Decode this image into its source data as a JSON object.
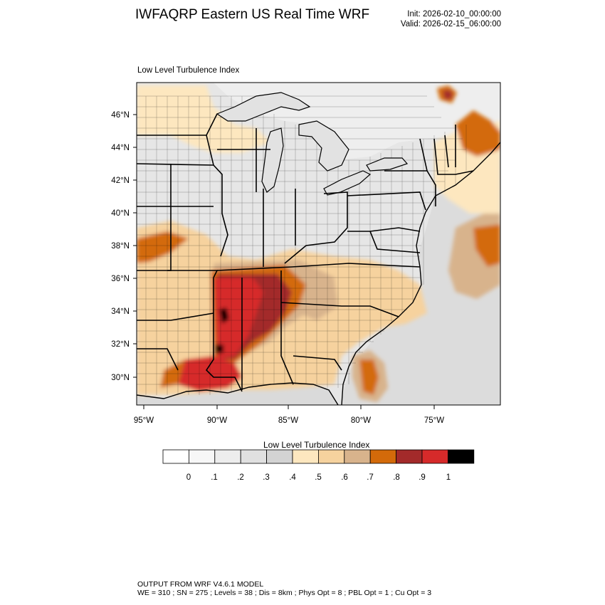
{
  "header": {
    "title": "IWFAQRP Eastern US Real Time WRF",
    "init": "Init: 2026-02-10_00:00:00",
    "valid": "Valid: 2026-02-15_06:00:00"
  },
  "map": {
    "subtitle": "Low Level Turbulence Index",
    "lat_ticks": [
      "46°N",
      "44°N",
      "42°N",
      "40°N",
      "38°N",
      "36°N",
      "34°N",
      "32°N",
      "30°N"
    ],
    "lon_ticks": [
      "95°W",
      "90°W",
      "85°W",
      "80°W",
      "75°W"
    ]
  },
  "colorbar": {
    "title": "Low Level Turbulence Index",
    "labels": [
      "0",
      ".1",
      ".2",
      ".3",
      ".4",
      ".5",
      ".6",
      ".7",
      ".8",
      ".9",
      "1"
    ],
    "colors": [
      "#ffffff",
      "#f7f7f7",
      "#ededed",
      "#e0e0e0",
      "#d3d3d3",
      "#fde7bf",
      "#f6d29e",
      "#d8b38c",
      "#d36a0a",
      "#a32a2a",
      "#d62a2a",
      "#000000"
    ]
  },
  "footer": {
    "line1": "OUTPUT FROM WRF V4.6.1 MODEL",
    "line2": "WE = 310 ; SN = 275 ; Levels = 38 ; Dis = 8km ; Phys Opt = 8 ; PBL Opt = 1 ; Cu Opt = 3"
  }
}
